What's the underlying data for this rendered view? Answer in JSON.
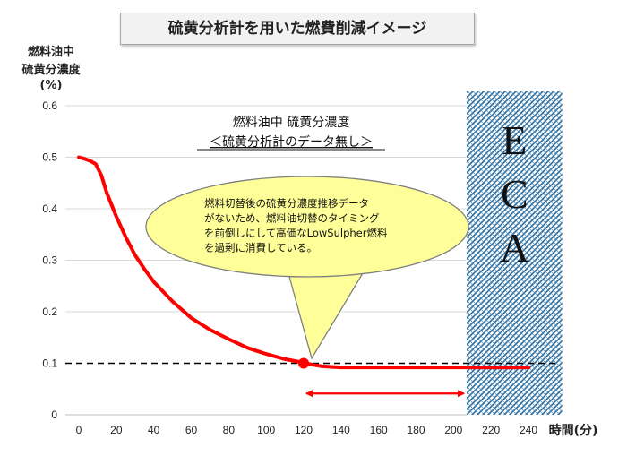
{
  "title": "硫黄分析計を用いた燃費削減イメージ",
  "chart_data": {
    "type": "line",
    "ylabel_lines": [
      "燃料油中",
      "硫黄分濃度",
      "(%)"
    ],
    "xlabel": "時間(分)",
    "xlim": [
      0,
      240
    ],
    "ylim": [
      0,
      0.6
    ],
    "x_ticks": [
      0,
      20,
      40,
      60,
      80,
      100,
      120,
      140,
      160,
      180,
      200,
      220,
      240
    ],
    "y_ticks": [
      0,
      0.1,
      0.2,
      0.3,
      0.4,
      0.5,
      0.6
    ],
    "y_tick_labels": [
      "0",
      "0.1",
      "0.2",
      "0.3",
      "0.4",
      "0.5",
      "0.6"
    ],
    "grid": "horizontal",
    "series": [
      {
        "color": "#ff0000",
        "x": [
          0,
          3,
          6,
          9,
          12,
          15,
          20,
          25,
          30,
          35,
          40,
          50,
          60,
          70,
          80,
          90,
          100,
          110,
          120,
          125,
          130,
          140,
          160,
          180,
          200,
          206,
          220,
          240
        ],
        "y": [
          0.5,
          0.497,
          0.493,
          0.487,
          0.465,
          0.43,
          0.385,
          0.345,
          0.31,
          0.283,
          0.258,
          0.22,
          0.188,
          0.165,
          0.147,
          0.13,
          0.118,
          0.108,
          0.101,
          0.097,
          0.094,
          0.092,
          0.092,
          0.092,
          0.092,
          0.092,
          0.092,
          0.092
        ]
      }
    ],
    "threshold": {
      "y": 0.1,
      "color": "#000000"
    },
    "marker_point": {
      "x": 120,
      "y": 0.1,
      "color": "#ff0000"
    },
    "arrow_range": {
      "x_start": 120,
      "x_end": 207,
      "y": 0.05,
      "color": "#ff0000"
    },
    "eca_zone": {
      "x_start": 207,
      "x_end": 258,
      "letters": [
        "E",
        "C",
        "A"
      ],
      "color": "#2e6e9e"
    },
    "annotation": {
      "lines": [
        "燃料油中 硫黄分濃度",
        "＜硫黄分析計のデータ無し＞"
      ]
    },
    "callout": {
      "lines": [
        "燃料切替後の硫黄分濃度推移データ",
        "がないため、燃料油切替のタイミング",
        "を前倒しにして高価なLowSulpher燃料",
        "を過剰に消費している。"
      ],
      "fill": "#ffff99",
      "stroke": "#7f7f7f"
    }
  }
}
